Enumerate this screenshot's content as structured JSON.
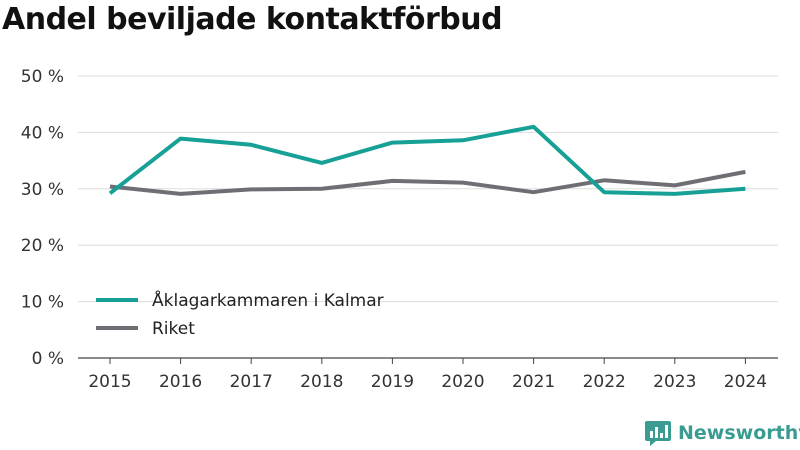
{
  "chart_data": {
    "type": "line",
    "title": "Andel beviljade kontaktförbud",
    "xlabel": "",
    "ylabel": "",
    "categories": [
      "2015",
      "2016",
      "2017",
      "2018",
      "2019",
      "2020",
      "2021",
      "2022",
      "2023",
      "2024"
    ],
    "ylim": [
      0,
      50
    ],
    "yticks": [
      0,
      10,
      20,
      30,
      40,
      50
    ],
    "ytick_labels": [
      "0 %",
      "10 %",
      "20 %",
      "30 %",
      "40 %",
      "50 %"
    ],
    "grid": true,
    "legend_position": "bottom-left",
    "series": [
      {
        "name": "Åklagarkammaren i Kalmar",
        "color": "#16a096",
        "values": [
          29.2,
          38.9,
          37.8,
          34.6,
          38.2,
          38.6,
          41.0,
          29.4,
          29.1,
          30.0
        ]
      },
      {
        "name": "Riket",
        "color": "#6f6e74",
        "values": [
          30.4,
          29.1,
          29.9,
          30.0,
          31.4,
          31.1,
          29.4,
          31.5,
          30.6,
          33.0
        ]
      }
    ]
  },
  "brand": {
    "name": "Newsworthy",
    "logo_icon": "bar-chart-bubble-icon",
    "color": "#3a9c90"
  }
}
